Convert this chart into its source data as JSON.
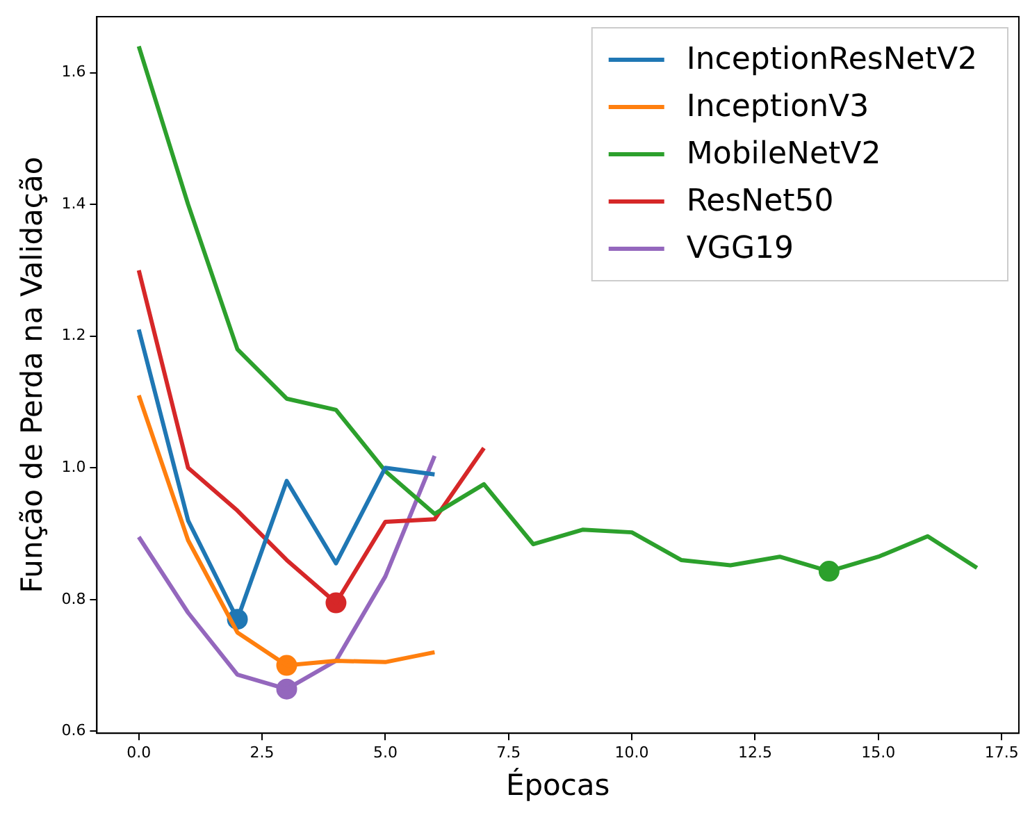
{
  "chart_data": {
    "type": "line",
    "xlabel": "Épocas",
    "ylabel": "Função de Perda na Validação",
    "x": [
      0,
      1,
      2,
      3,
      4,
      5,
      6,
      7,
      8,
      9,
      10,
      11,
      12,
      13,
      14,
      15,
      16,
      17
    ],
    "xlim": [
      -0.85,
      17.85
    ],
    "xticks": [
      {
        "value": 0,
        "label": "0.0"
      },
      {
        "value": 2.5,
        "label": "2.5"
      },
      {
        "value": 5,
        "label": "5.0"
      },
      {
        "value": 7.5,
        "label": "7.5"
      },
      {
        "value": 10,
        "label": "10.0"
      },
      {
        "value": 12.5,
        "label": "12.5"
      },
      {
        "value": 15,
        "label": "15.0"
      },
      {
        "value": 17.5,
        "label": "17.5"
      }
    ],
    "ylim": [
      0.597,
      1.685
    ],
    "yticks": [
      {
        "value": 0.6,
        "label": "0.6"
      },
      {
        "value": 0.8,
        "label": "0.8"
      },
      {
        "value": 1.0,
        "label": "1.0"
      },
      {
        "value": 1.2,
        "label": "1.2"
      },
      {
        "value": 1.4,
        "label": "1.4"
      },
      {
        "value": 1.6,
        "label": "1.6"
      }
    ],
    "grid": false,
    "legend": "top right",
    "marker": "none",
    "line_style": "solid",
    "series": [
      {
        "name": "InceptionResNetV2",
        "color": "#1f77b4",
        "x": [
          0,
          1,
          2,
          3,
          4,
          5,
          6
        ],
        "values": [
          1.21,
          0.92,
          0.77,
          0.98,
          0.855,
          1.0,
          0.99
        ]
      },
      {
        "name": "InceptionV3",
        "color": "#ff7f0e",
        "x": [
          0,
          1,
          2,
          3,
          4,
          5,
          6
        ],
        "values": [
          1.11,
          0.89,
          0.75,
          0.7,
          0.707,
          0.705,
          0.72
        ]
      },
      {
        "name": "MobileNetV2",
        "color": "#2ca02c",
        "values": [
          1.64,
          1.4,
          1.18,
          1.105,
          1.088,
          0.995,
          0.93,
          0.975,
          0.884,
          0.906,
          0.902,
          0.86,
          0.852,
          0.865,
          0.843,
          0.865,
          0.896,
          0.848
        ]
      },
      {
        "name": "ResNet50",
        "color": "#d62728",
        "x": [
          0,
          1,
          2,
          3,
          4,
          5,
          6,
          7
        ],
        "values": [
          1.3,
          1.0,
          0.935,
          0.86,
          0.795,
          0.918,
          0.922,
          1.03
        ]
      },
      {
        "name": "VGG19",
        "color": "#9467bd",
        "x": [
          0,
          1,
          2,
          3,
          4,
          5,
          6
        ],
        "values": [
          0.895,
          0.78,
          0.686,
          0.664,
          0.707,
          0.835,
          1.018
        ]
      },
      {
        "type": "scatter",
        "marker": "circle",
        "color": "#1f77b4",
        "x": [
          2
        ],
        "values": [
          0.77
        ]
      },
      {
        "type": "scatter",
        "marker": "circle",
        "color": "#ff7f0e",
        "x": [
          3
        ],
        "values": [
          0.7
        ]
      },
      {
        "type": "scatter",
        "marker": "circle",
        "color": "#2ca02c",
        "x": [
          14
        ],
        "values": [
          0.843
        ]
      },
      {
        "type": "scatter",
        "marker": "circle",
        "color": "#d62728",
        "x": [
          4
        ],
        "values": [
          0.795
        ]
      },
      {
        "type": "scatter",
        "marker": "circle",
        "color": "#9467bd",
        "x": [
          3
        ],
        "values": [
          0.664
        ]
      }
    ]
  }
}
